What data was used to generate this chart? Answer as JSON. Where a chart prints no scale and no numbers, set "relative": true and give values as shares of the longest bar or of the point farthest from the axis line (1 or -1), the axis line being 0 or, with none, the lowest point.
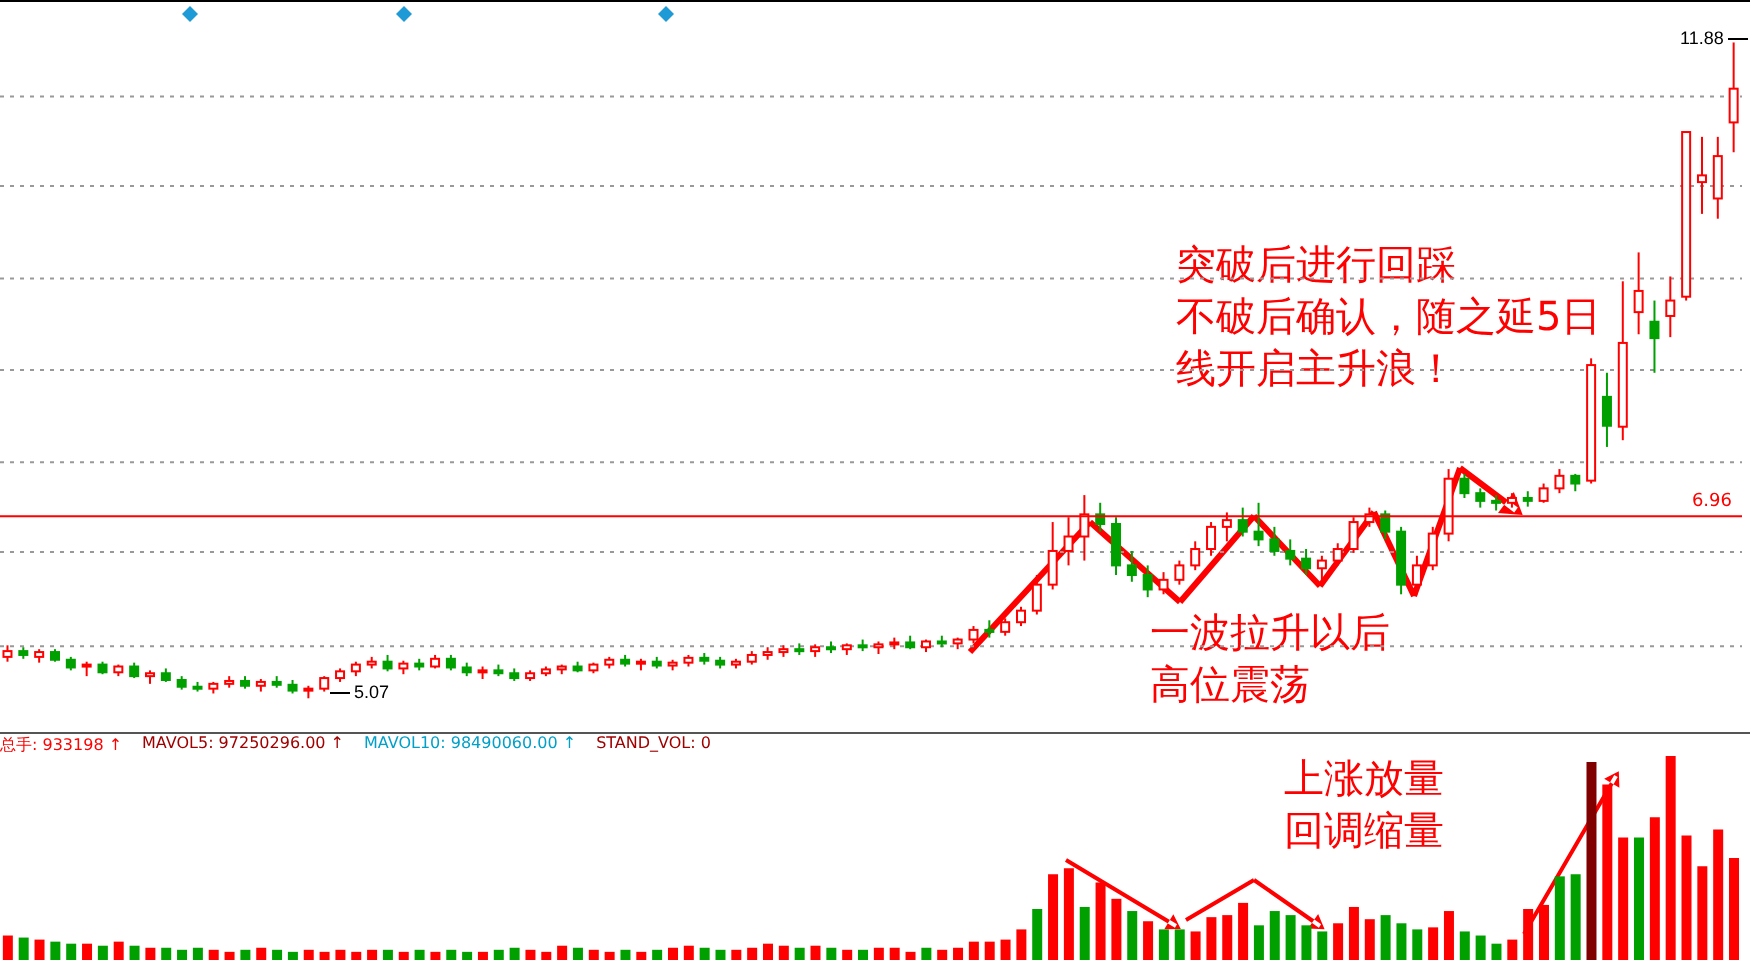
{
  "chart_data": [
    {
      "type": "candlestick",
      "categories": [
        null,
        null,
        null,
        null,
        null,
        null,
        null,
        null,
        null,
        null,
        null,
        null,
        null,
        null,
        null,
        null,
        null,
        null,
        null,
        null,
        null,
        null,
        null,
        null,
        null,
        null,
        null,
        null,
        null,
        null,
        null,
        null,
        null,
        null,
        null,
        null,
        null,
        null,
        null,
        null,
        null,
        null,
        null,
        null,
        null,
        null,
        null,
        null,
        null,
        null,
        null,
        null,
        null,
        null,
        null,
        null,
        null,
        null,
        null,
        null,
        null,
        null,
        null,
        null,
        null,
        null,
        null,
        null,
        null,
        null,
        null,
        null,
        null,
        null,
        null,
        null,
        null,
        null,
        null,
        null,
        null,
        null,
        null,
        null,
        null,
        null,
        null,
        null,
        null,
        null,
        null,
        null,
        null,
        null,
        null,
        null,
        null,
        null,
        null,
        null,
        null,
        null,
        null,
        null,
        null,
        null,
        null,
        null,
        null,
        null
      ],
      "ohlc": [
        [
          5.5,
          5.62,
          5.45,
          5.56
        ],
        [
          5.56,
          5.6,
          5.48,
          5.52
        ],
        [
          5.5,
          5.58,
          5.44,
          5.55
        ],
        [
          5.55,
          5.58,
          5.45,
          5.47
        ],
        [
          5.47,
          5.5,
          5.36,
          5.39
        ],
        [
          5.4,
          5.45,
          5.3,
          5.42
        ],
        [
          5.42,
          5.45,
          5.32,
          5.34
        ],
        [
          5.34,
          5.42,
          5.3,
          5.4
        ],
        [
          5.4,
          5.44,
          5.28,
          5.3
        ],
        [
          5.3,
          5.36,
          5.22,
          5.33
        ],
        [
          5.33,
          5.38,
          5.24,
          5.26
        ],
        [
          5.26,
          5.3,
          5.16,
          5.19
        ],
        [
          5.19,
          5.24,
          5.14,
          5.17
        ],
        [
          5.17,
          5.24,
          5.12,
          5.22
        ],
        [
          5.22,
          5.3,
          5.18,
          5.25
        ],
        [
          5.25,
          5.3,
          5.17,
          5.2
        ],
        [
          5.2,
          5.27,
          5.14,
          5.24
        ],
        [
          5.24,
          5.3,
          5.18,
          5.21
        ],
        [
          5.21,
          5.26,
          5.12,
          5.15
        ],
        [
          5.15,
          5.2,
          5.07,
          5.17
        ],
        [
          5.17,
          5.3,
          5.14,
          5.28
        ],
        [
          5.28,
          5.38,
          5.24,
          5.35
        ],
        [
          5.35,
          5.45,
          5.3,
          5.42
        ],
        [
          5.42,
          5.5,
          5.38,
          5.45
        ],
        [
          5.45,
          5.52,
          5.35,
          5.38
        ],
        [
          5.38,
          5.46,
          5.32,
          5.43
        ],
        [
          5.43,
          5.48,
          5.36,
          5.4
        ],
        [
          5.4,
          5.52,
          5.38,
          5.48
        ],
        [
          5.48,
          5.52,
          5.36,
          5.39
        ],
        [
          5.39,
          5.44,
          5.3,
          5.34
        ],
        [
          5.34,
          5.4,
          5.27,
          5.36
        ],
        [
          5.36,
          5.42,
          5.3,
          5.33
        ],
        [
          5.33,
          5.38,
          5.25,
          5.28
        ],
        [
          5.28,
          5.36,
          5.25,
          5.33
        ],
        [
          5.33,
          5.4,
          5.3,
          5.37
        ],
        [
          5.37,
          5.42,
          5.32,
          5.4
        ],
        [
          5.4,
          5.45,
          5.34,
          5.36
        ],
        [
          5.36,
          5.44,
          5.33,
          5.42
        ],
        [
          5.42,
          5.5,
          5.38,
          5.47
        ],
        [
          5.47,
          5.52,
          5.4,
          5.43
        ],
        [
          5.43,
          5.48,
          5.36,
          5.45
        ],
        [
          5.45,
          5.5,
          5.38,
          5.41
        ],
        [
          5.41,
          5.47,
          5.36,
          5.44
        ],
        [
          5.44,
          5.52,
          5.4,
          5.49
        ],
        [
          5.49,
          5.54,
          5.42,
          5.46
        ],
        [
          5.46,
          5.5,
          5.38,
          5.42
        ],
        [
          5.42,
          5.48,
          5.38,
          5.45
        ],
        [
          5.45,
          5.56,
          5.42,
          5.52
        ],
        [
          5.52,
          5.6,
          5.47,
          5.55
        ],
        [
          5.55,
          5.62,
          5.5,
          5.58
        ],
        [
          5.58,
          5.64,
          5.52,
          5.56
        ],
        [
          5.56,
          5.63,
          5.5,
          5.6
        ],
        [
          5.6,
          5.66,
          5.54,
          5.58
        ],
        [
          5.58,
          5.64,
          5.52,
          5.62
        ],
        [
          5.62,
          5.68,
          5.56,
          5.6
        ],
        [
          5.6,
          5.66,
          5.53,
          5.63
        ],
        [
          5.63,
          5.7,
          5.58,
          5.65
        ],
        [
          5.65,
          5.72,
          5.58,
          5.6
        ],
        [
          5.6,
          5.68,
          5.55,
          5.66
        ],
        [
          5.66,
          5.72,
          5.6,
          5.64
        ],
        [
          5.64,
          5.7,
          5.58,
          5.68
        ],
        [
          5.68,
          5.82,
          5.64,
          5.78
        ],
        [
          5.78,
          5.88,
          5.7,
          5.76
        ],
        [
          5.76,
          5.9,
          5.72,
          5.86
        ],
        [
          5.86,
          6.02,
          5.82,
          5.98
        ],
        [
          5.98,
          6.35,
          5.94,
          6.25
        ],
        [
          6.25,
          6.9,
          6.2,
          6.6
        ],
        [
          6.6,
          6.95,
          6.45,
          6.75
        ],
        [
          6.75,
          7.18,
          6.5,
          6.98
        ],
        [
          6.98,
          7.1,
          6.8,
          6.88
        ],
        [
          6.88,
          6.95,
          6.35,
          6.45
        ],
        [
          6.45,
          6.6,
          6.28,
          6.35
        ],
        [
          6.35,
          6.45,
          6.12,
          6.2
        ],
        [
          6.2,
          6.38,
          6.15,
          6.3
        ],
        [
          6.3,
          6.5,
          6.25,
          6.45
        ],
        [
          6.45,
          6.7,
          6.4,
          6.62
        ],
        [
          6.62,
          6.9,
          6.55,
          6.85
        ],
        [
          6.85,
          7.0,
          6.7,
          6.92
        ],
        [
          6.92,
          7.05,
          6.75,
          6.8
        ],
        [
          6.8,
          7.1,
          6.65,
          6.72
        ],
        [
          6.72,
          6.85,
          6.55,
          6.6
        ],
        [
          6.6,
          6.72,
          6.45,
          6.52
        ],
        [
          6.52,
          6.62,
          6.35,
          6.42
        ],
        [
          6.42,
          6.55,
          6.3,
          6.5
        ],
        [
          6.5,
          6.68,
          6.45,
          6.62
        ],
        [
          6.62,
          6.95,
          6.58,
          6.9
        ],
        [
          6.9,
          7.05,
          6.85,
          6.98
        ],
        [
          6.98,
          7.02,
          6.72,
          6.8
        ],
        [
          6.8,
          6.85,
          6.15,
          6.25
        ],
        [
          6.25,
          6.55,
          6.15,
          6.45
        ],
        [
          6.45,
          6.85,
          6.4,
          6.78
        ],
        [
          6.78,
          7.45,
          6.7,
          7.35
        ],
        [
          7.35,
          7.4,
          7.15,
          7.2
        ],
        [
          7.2,
          7.25,
          7.05,
          7.12
        ],
        [
          7.12,
          7.18,
          7.02,
          7.1
        ],
        [
          7.1,
          7.2,
          7.05,
          7.15
        ],
        [
          7.15,
          7.22,
          7.06,
          7.12
        ],
        [
          7.12,
          7.3,
          7.1,
          7.25
        ],
        [
          7.25,
          7.45,
          7.2,
          7.38
        ],
        [
          7.38,
          7.4,
          7.22,
          7.3
        ],
        [
          7.33,
          8.6,
          7.3,
          8.53
        ],
        [
          8.2,
          8.45,
          7.68,
          7.9
        ],
        [
          7.89,
          9.4,
          7.75,
          8.76
        ],
        [
          9.08,
          9.7,
          8.85,
          9.3
        ],
        [
          8.98,
          9.2,
          8.45,
          8.81
        ],
        [
          9.04,
          9.45,
          8.82,
          9.2
        ],
        [
          9.24,
          10.95,
          9.2,
          10.95
        ],
        [
          10.43,
          10.9,
          10.1,
          10.5
        ],
        [
          10.26,
          10.9,
          10.05,
          10.7
        ],
        [
          11.05,
          11.88,
          10.74,
          11.4
        ]
      ],
      "colors": [
        "#ff0000",
        "#00a000",
        "#ff0000",
        "#00a000",
        "#00a000",
        "#ff0000",
        "#00a000",
        "#ff0000",
        "#00a000",
        "#ff0000",
        "#00a000",
        "#00a000",
        "#00a000",
        "#ff0000",
        "#ff0000",
        "#00a000",
        "#ff0000",
        "#00a000",
        "#00a000",
        "#ff0000",
        "#ff0000",
        "#ff0000",
        "#ff0000",
        "#ff0000",
        "#00a000",
        "#ff0000",
        "#00a000",
        "#ff0000",
        "#00a000",
        "#00a000",
        "#ff0000",
        "#00a000",
        "#00a000",
        "#ff0000",
        "#ff0000",
        "#ff0000",
        "#00a000",
        "#ff0000",
        "#ff0000",
        "#00a000",
        "#ff0000",
        "#00a000",
        "#ff0000",
        "#ff0000",
        "#00a000",
        "#00a000",
        "#ff0000",
        "#ff0000",
        "#ff0000",
        "#ff0000",
        "#00a000",
        "#ff0000",
        "#00a000",
        "#ff0000",
        "#00a000",
        "#ff0000",
        "#ff0000",
        "#00a000",
        "#ff0000",
        "#00a000",
        "#ff0000",
        "#ff0000",
        "#00a000",
        "#ff0000",
        "#ff0000",
        "#ff0000",
        "#ff0000",
        "#ff0000",
        "#ff0000",
        "#00a000",
        "#00a000",
        "#00a000",
        "#00a000",
        "#ff0000",
        "#ff0000",
        "#ff0000",
        "#ff0000",
        "#ff0000",
        "#00a000",
        "#00a000",
        "#00a000",
        "#00a000",
        "#00a000",
        "#ff0000",
        "#ff0000",
        "#ff0000",
        "#ff0000",
        "#00a000",
        "#00a000",
        "#ff0000",
        "#ff0000",
        "#ff0000",
        "#00a000",
        "#00a000",
        "#00a000",
        "#ff0000",
        "#00a000",
        "#ff0000",
        "#ff0000",
        "#00a000",
        "#ff0000",
        "#00a000",
        "#ff0000",
        "#ff0000",
        "#00a000",
        "#ff0000",
        "#ff0000",
        "#ff0000",
        "#ff0000",
        "#ff0000"
      ],
      "yticks": [
        {
          "value": 5.61,
          "label": null
        },
        {
          "value": 6.59,
          "label": null
        },
        {
          "value": 7.52,
          "label": null
        },
        {
          "value": 8.48,
          "label": null
        },
        {
          "value": 9.43,
          "label": null
        },
        {
          "value": 10.39,
          "label": null
        },
        {
          "value": 11.32,
          "label": null
        }
      ],
      "tick_labels": false,
      "grid": "y",
      "ref_lines": [
        {
          "axis": "y",
          "value": 6.96,
          "label": "6.96",
          "color": "#ff0000"
        }
      ],
      "annotations": [
        "突破后进行回踩不破后确认，随之延5日线开启主升浪！",
        "一波拉升以后高位震荡",
        "11.88",
        "5.07"
      ]
    },
    {
      "type": "bar",
      "relative": true,
      "categories": [
        null,
        null,
        null,
        null,
        null,
        null,
        null,
        null,
        null,
        null,
        null,
        null,
        null,
        null,
        null,
        null,
        null,
        null,
        null,
        null,
        null,
        null,
        null,
        null,
        null,
        null,
        null,
        null,
        null,
        null,
        null,
        null,
        null,
        null,
        null,
        null,
        null,
        null,
        null,
        null,
        null,
        null,
        null,
        null,
        null,
        null,
        null,
        null,
        null,
        null,
        null,
        null,
        null,
        null,
        null,
        null,
        null,
        null,
        null,
        null,
        null,
        null,
        null,
        null,
        null,
        null,
        null,
        null,
        null,
        null,
        null,
        null,
        null,
        null,
        null,
        null,
        null,
        null,
        null,
        null,
        null,
        null,
        null,
        null,
        null,
        null,
        null,
        null,
        null,
        null,
        null,
        null,
        null,
        null,
        null,
        null,
        null,
        null,
        null,
        null,
        null,
        null,
        null,
        null,
        null,
        null,
        null,
        null,
        null,
        null
      ],
      "values": [
        0.12,
        0.11,
        0.1,
        0.09,
        0.08,
        0.08,
        0.07,
        0.09,
        0.07,
        0.06,
        0.06,
        0.05,
        0.06,
        0.05,
        0.04,
        0.05,
        0.06,
        0.05,
        0.04,
        0.05,
        0.04,
        0.05,
        0.04,
        0.05,
        0.05,
        0.04,
        0.05,
        0.04,
        0.05,
        0.04,
        0.04,
        0.05,
        0.06,
        0.05,
        0.04,
        0.07,
        0.06,
        0.05,
        0.04,
        0.05,
        0.04,
        0.05,
        0.06,
        0.07,
        0.06,
        0.05,
        0.05,
        0.06,
        0.08,
        0.07,
        0.06,
        0.07,
        0.06,
        0.05,
        0.05,
        0.06,
        0.06,
        0.04,
        0.06,
        0.05,
        0.06,
        0.09,
        0.09,
        0.1,
        0.15,
        0.25,
        0.42,
        0.45,
        0.26,
        0.38,
        0.3,
        0.24,
        0.19,
        0.15,
        0.15,
        0.14,
        0.21,
        0.22,
        0.28,
        0.17,
        0.24,
        0.22,
        0.17,
        0.14,
        0.18,
        0.26,
        0.2,
        0.22,
        0.18,
        0.15,
        0.16,
        0.24,
        0.14,
        0.12,
        0.08,
        0.1,
        0.25,
        0.27,
        0.41,
        0.42,
        0.97,
        0.86,
        0.6,
        0.6,
        0.7,
        1,
        0.61,
        0.46,
        0.64,
        0.5
      ],
      "colors": [
        "#ff0000",
        "#00a000",
        "#ff0000",
        "#00a000",
        "#00a000",
        "#ff0000",
        "#00a000",
        "#ff0000",
        "#00a000",
        "#ff0000",
        "#00a000",
        "#00a000",
        "#00a000",
        "#ff0000",
        "#ff0000",
        "#00a000",
        "#ff0000",
        "#00a000",
        "#00a000",
        "#ff0000",
        "#ff0000",
        "#ff0000",
        "#ff0000",
        "#ff0000",
        "#00a000",
        "#ff0000",
        "#00a000",
        "#ff0000",
        "#00a000",
        "#00a000",
        "#ff0000",
        "#00a000",
        "#00a000",
        "#ff0000",
        "#ff0000",
        "#ff0000",
        "#00a000",
        "#ff0000",
        "#ff0000",
        "#00a000",
        "#ff0000",
        "#00a000",
        "#ff0000",
        "#ff0000",
        "#00a000",
        "#00a000",
        "#ff0000",
        "#ff0000",
        "#ff0000",
        "#ff0000",
        "#00a000",
        "#ff0000",
        "#00a000",
        "#ff0000",
        "#00a000",
        "#ff0000",
        "#ff0000",
        "#ff0000",
        "#00a000",
        "#ff0000",
        "#ff0000",
        "#ff0000",
        "#ff0000",
        "#ff0000",
        "#ff0000",
        "#00a000",
        "#ff0000",
        "#ff0000",
        "#00a000",
        "#ff0000",
        "#ff0000",
        "#00a000",
        "#ff0000",
        "#00a000",
        "#00a000",
        "#ff0000",
        "#ff0000",
        "#ff0000",
        "#ff0000",
        "#00a000",
        "#00a000",
        "#00a000",
        "#00a000",
        "#00a000",
        "#ff0000",
        "#ff0000",
        "#ff0000",
        "#00a000",
        "#00a000",
        "#00a000",
        "#ff0000",
        "#ff0000",
        "#00a000",
        "#00a000",
        "#00a000",
        "#ff0000",
        "#ff0000",
        "#ff0000",
        "#00a000",
        "#00a000",
        "#800000",
        "#ff0000",
        "#ff0000",
        "#00a000",
        "#ff0000",
        "#ff0000",
        "#ff0000",
        "#ff0000",
        "#ff0000",
        "#ff0000"
      ],
      "annotations": [
        "总手: 933198 ↑",
        "MAVOL5: 97250296.00 ↑",
        "MAVOL10: 98490060.00 ↑",
        "STAND_VOL: 0",
        "上涨放量回调缩量"
      ]
    }
  ]
}
